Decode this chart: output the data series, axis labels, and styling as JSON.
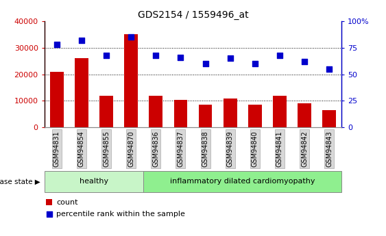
{
  "title": "GDS2154 / 1559496_at",
  "samples": [
    "GSM94831",
    "GSM94854",
    "GSM94855",
    "GSM94870",
    "GSM94836",
    "GSM94837",
    "GSM94838",
    "GSM94839",
    "GSM94840",
    "GSM94841",
    "GSM94842",
    "GSM94843"
  ],
  "counts": [
    21000,
    26000,
    12000,
    35000,
    12000,
    10500,
    8500,
    10800,
    8700,
    12000,
    9200,
    6500
  ],
  "percentiles": [
    78,
    82,
    68,
    85,
    68,
    66,
    60,
    65,
    60,
    68,
    62,
    55
  ],
  "n_healthy": 4,
  "n_disease": 8,
  "bar_color": "#cc0000",
  "dot_color": "#0000cc",
  "left_yaxis_color": "#cc0000",
  "right_yaxis_color": "#0000cc",
  "left_ylim": [
    0,
    40000
  ],
  "right_ylim": [
    0,
    100
  ],
  "left_yticks": [
    0,
    10000,
    20000,
    30000,
    40000
  ],
  "right_yticks": [
    0,
    25,
    50,
    75,
    100
  ],
  "left_ytick_labels": [
    "0",
    "10000",
    "20000",
    "30000",
    "40000"
  ],
  "right_ytick_labels": [
    "0",
    "25",
    "50",
    "75",
    "100%"
  ],
  "healthy_label": "healthy",
  "disease_label": "inflammatory dilated cardiomyopathy",
  "disease_state_label": "disease state",
  "legend_count": "count",
  "legend_percentile": "percentile rank within the sample",
  "healthy_bg": "#c8f5c8",
  "disease_bg": "#8fef8f",
  "xticklabel_bg": "#d8d8d8",
  "xticklabel_edge": "#aaaaaa",
  "grid_color": "black",
  "spine_color": "#888888"
}
